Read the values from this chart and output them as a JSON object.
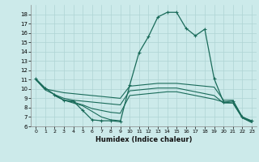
{
  "xlabel": "Humidex (Indice chaleur)",
  "bg_color": "#cceaea",
  "grid_color": "#afd4d4",
  "line_color": "#1a6b5a",
  "xlim": [
    -0.5,
    23.5
  ],
  "ylim": [
    6,
    19
  ],
  "xticks": [
    0,
    1,
    2,
    3,
    4,
    5,
    6,
    7,
    8,
    9,
    10,
    11,
    12,
    13,
    14,
    15,
    16,
    17,
    18,
    19,
    20,
    21,
    22,
    23
  ],
  "yticks": [
    6,
    7,
    8,
    9,
    10,
    11,
    12,
    13,
    14,
    15,
    16,
    17,
    18
  ],
  "line1_x": [
    0,
    1,
    2,
    3,
    4,
    5,
    6,
    7,
    8,
    9,
    10,
    11,
    12,
    13,
    14,
    15,
    16,
    17,
    18,
    19,
    20,
    21,
    22,
    23
  ],
  "line1_y": [
    11.1,
    10.1,
    9.4,
    8.8,
    8.7,
    7.7,
    6.7,
    6.6,
    6.6,
    6.5,
    10.4,
    13.9,
    15.6,
    17.7,
    18.2,
    18.2,
    16.5,
    15.7,
    16.4,
    11.1,
    8.6,
    8.7,
    7.0,
    6.6
  ],
  "line2_x": [
    0,
    1,
    2,
    3,
    4,
    5,
    6,
    7,
    8,
    9,
    10,
    11,
    12,
    13,
    14,
    15,
    16,
    17,
    18,
    19,
    20,
    21,
    22,
    23
  ],
  "line2_y": [
    11.0,
    10.0,
    9.8,
    9.6,
    9.5,
    9.4,
    9.3,
    9.2,
    9.1,
    9.0,
    10.3,
    10.4,
    10.5,
    10.6,
    10.6,
    10.6,
    10.5,
    10.4,
    10.3,
    10.2,
    8.8,
    8.8,
    7.0,
    6.5
  ],
  "line3_x": [
    0,
    1,
    2,
    3,
    4,
    5,
    6,
    7,
    8,
    9,
    10,
    11,
    12,
    13,
    14,
    15,
    16,
    17,
    18,
    19,
    20,
    21,
    22,
    23
  ],
  "line3_y": [
    11.0,
    9.9,
    9.4,
    9.0,
    8.8,
    8.7,
    8.6,
    8.5,
    8.4,
    8.3,
    9.8,
    9.9,
    10.0,
    10.1,
    10.1,
    10.1,
    9.9,
    9.7,
    9.5,
    9.3,
    8.5,
    8.5,
    6.9,
    6.5
  ],
  "line4_x": [
    2,
    3,
    4,
    5,
    6,
    7,
    8,
    9,
    10,
    11,
    12,
    13,
    14,
    15,
    16,
    17,
    18,
    19,
    20,
    21,
    22,
    23
  ],
  "line4_y": [
    9.3,
    8.8,
    8.6,
    8.3,
    7.9,
    7.7,
    7.5,
    7.4,
    9.3,
    9.4,
    9.5,
    9.6,
    9.7,
    9.7,
    9.5,
    9.3,
    9.1,
    8.9,
    8.6,
    8.5,
    6.9,
    6.4
  ],
  "line5_x": [
    2,
    3,
    4,
    5,
    6,
    7,
    8,
    9
  ],
  "line5_y": [
    9.3,
    8.8,
    8.5,
    8.2,
    7.6,
    7.0,
    6.7,
    6.6
  ]
}
